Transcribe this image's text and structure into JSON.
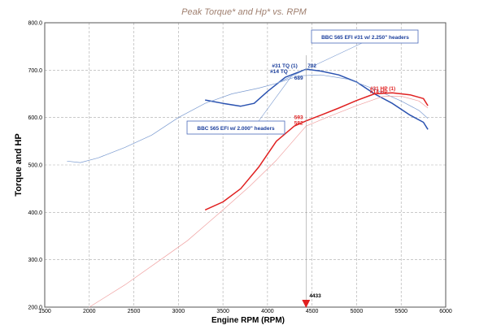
{
  "chart_data": {
    "type": "line",
    "title": "Peak Torque* and Hp* vs. RPM",
    "xlabel": "Engine RPM (RPM)",
    "ylabel": "Torque and HP",
    "xlim": [
      1500,
      6000
    ],
    "ylim": [
      200,
      800
    ],
    "x_ticks": [
      "1500",
      "2000",
      "2500",
      "3000",
      "3500",
      "4000",
      "4500",
      "5000",
      "5500",
      "6000"
    ],
    "y_ticks": [
      "200.0",
      "300.0",
      "400.0",
      "500.0",
      "600.0",
      "700.0",
      "800.0"
    ],
    "grid": true,
    "legend": [
      {
        "text": "BBC 565 EFI #31 w/ 2.250\" headers",
        "color": "#1a3e9c"
      },
      {
        "text": "BBC 565 EFI w/ 2.000\" headers",
        "color": "#1a3e9c"
      }
    ],
    "series": [
      {
        "name": "",
        "color": "#2a52b0",
        "style": "dark torque",
        "x": [
          3300,
          3500,
          3700,
          3850,
          4000,
          4200,
          4433,
          4600,
          4800,
          5000,
          5200,
          5400,
          5600,
          5750,
          5800
        ],
        "y": [
          637,
          630,
          624,
          630,
          655,
          685,
          702,
          698,
          690,
          675,
          650,
          630,
          605,
          590,
          575
        ]
      },
      {
        "name": "",
        "color": "#7a9ad0",
        "style": "light torque",
        "x": [
          1750,
          1900,
          2100,
          2400,
          2700,
          3000,
          3300,
          3600,
          3900,
          4100,
          4350,
          4600,
          4900,
          5200,
          5500,
          5700,
          5800
        ],
        "y": [
          508,
          505,
          515,
          537,
          563,
          600,
          630,
          650,
          662,
          672,
          688,
          690,
          681,
          660,
          635,
          615,
          598
        ]
      },
      {
        "name": "",
        "color": "#e02020",
        "style": "dark hp",
        "x": [
          3300,
          3500,
          3700,
          3900,
          4100,
          4300,
          4433,
          4600,
          4800,
          5000,
          5200,
          5400,
          5600,
          5750,
          5800
        ],
        "y": [
          405,
          422,
          450,
          495,
          550,
          582,
          593,
          605,
          620,
          636,
          650,
          652,
          648,
          640,
          625
        ]
      },
      {
        "name": "",
        "color": "#f0a0a0",
        "style": "light hp",
        "x": [
          2000,
          2400,
          2800,
          3100,
          3500,
          3800,
          4100,
          4433,
          4700,
          5000,
          5300,
          5500,
          5700,
          5800
        ],
        "y": [
          200,
          247,
          300,
          340,
          405,
          455,
          510,
          582,
          603,
          625,
          645,
          645,
          635,
          620
        ]
      }
    ],
    "annotations": [
      {
        "text": "#31 TQ (1)",
        "color": "#1a3e9c",
        "x": 4050,
        "y": 706
      },
      {
        "text": "702",
        "color": "#1a3e9c",
        "x": 4450,
        "y": 706
      },
      {
        "text": "#14 TQ",
        "color": "#1a3e9c",
        "x": 4030,
        "y": 694
      },
      {
        "text": "689",
        "color": "#1a3e9c",
        "x": 4300,
        "y": 680
      },
      {
        "text": "593",
        "color": "#e02020",
        "x": 4300,
        "y": 597
      },
      {
        "text": "582",
        "color": "#e02020",
        "x": 4300,
        "y": 585
      },
      {
        "text": "#31 HP (1)",
        "color": "#e02020",
        "x": 5150,
        "y": 658
      },
      {
        "text": "#14 HP",
        "color": "#e02020",
        "x": 5150,
        "y": 651
      }
    ],
    "marker": {
      "label": "4433",
      "x": 4433
    }
  }
}
